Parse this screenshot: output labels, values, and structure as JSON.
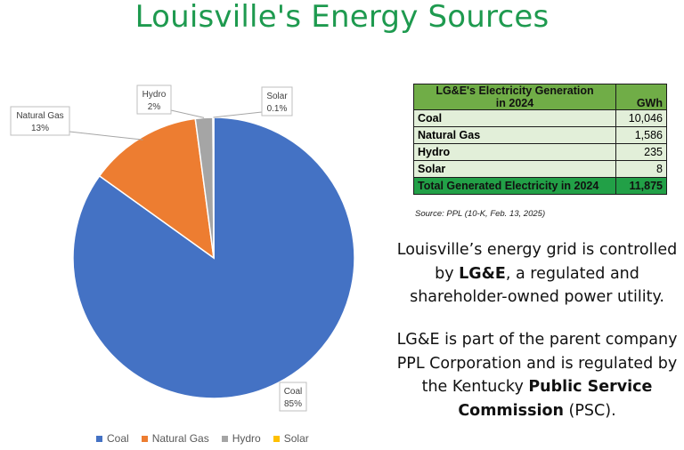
{
  "title": "Louisville's Energy Sources",
  "chart_data": {
    "type": "pie",
    "categories": [
      "Coal",
      "Natural Gas",
      "Hydro",
      "Solar"
    ],
    "values": [
      85,
      13,
      2,
      0.1
    ],
    "labels": [
      "Coal\n85%",
      "Natural Gas\n13%",
      "Hydro\n2%",
      "Solar\n0.1%"
    ],
    "colors": [
      "#4472c4",
      "#ed7d31",
      "#a5a5a5",
      "#ffc000"
    ],
    "legend_position": "bottom"
  },
  "table": {
    "header_line1": "LG&E's Electricity Generation",
    "header_line2": "in 2024",
    "unit_header": "GWh",
    "rows": [
      {
        "name": "Coal",
        "value": "10,046"
      },
      {
        "name": "Natural Gas",
        "value": "1,586"
      },
      {
        "name": "Hydro",
        "value": "235"
      },
      {
        "name": "Solar",
        "value": "8"
      }
    ],
    "total": {
      "name": "Total Generated Electricity in 2024",
      "value": "11,875"
    }
  },
  "source": "Source: PPL (10-K, Feb. 13, 2025)",
  "paragraph1": {
    "line1": "Louisville’s energy grid is controlled",
    "line2_pre": "by ",
    "line2_bold": "LG&E",
    "line2_post": ", a regulated and",
    "line3": "shareholder-owned power utility."
  },
  "paragraph2": {
    "line1": "LG&E is part of the parent company",
    "line2": "PPL Corporation and is regulated by",
    "line3_pre": "the Kentucky ",
    "line3_bold": "Public Service",
    "line4_bold": "Commission",
    "line4_post": " (PSC)."
  }
}
